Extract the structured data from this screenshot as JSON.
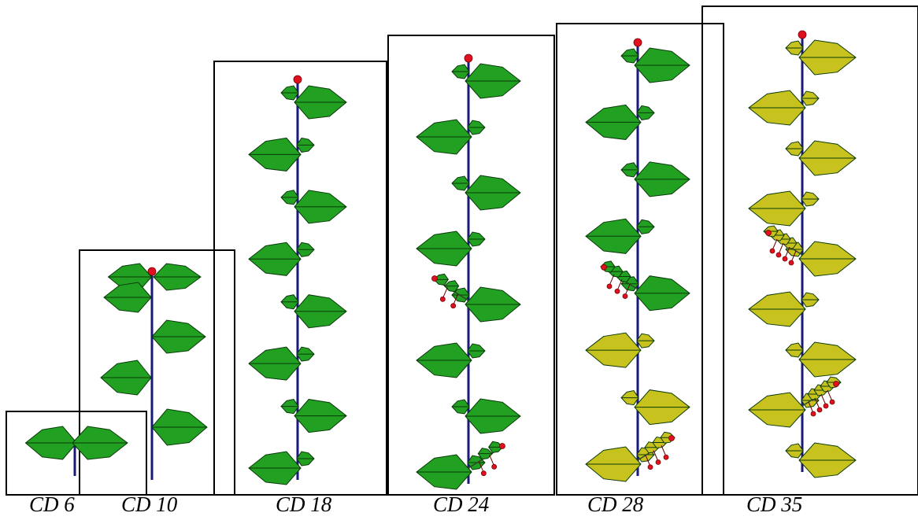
{
  "panels": [
    {
      "label": "CD 6",
      "nodes": 1,
      "leaf_color": "#22a022",
      "flowers": false
    },
    {
      "label": "CD 10",
      "nodes": 5,
      "leaf_color": "#22a022",
      "flowers": true
    },
    {
      "label": "CD 18",
      "nodes": 12,
      "leaf_color": "#22a022",
      "flowers": true
    },
    {
      "label": "CD 24",
      "nodes": 15,
      "leaf_color": "#22a022",
      "flowers": true
    },
    {
      "label": "CD 28",
      "nodes": 17,
      "leaf_color": "#22a022",
      "senescent_color": "#c8c21e",
      "flowers": true
    },
    {
      "label": "CD 35",
      "nodes": 20,
      "leaf_color": "#c8c21e",
      "flowers": true
    }
  ],
  "colors": {
    "leaf_green": "#22a022",
    "leaf_yellow": "#c8c21e",
    "stem": "#1a1a7a",
    "flower": "#e01020",
    "frame": "#000000"
  }
}
